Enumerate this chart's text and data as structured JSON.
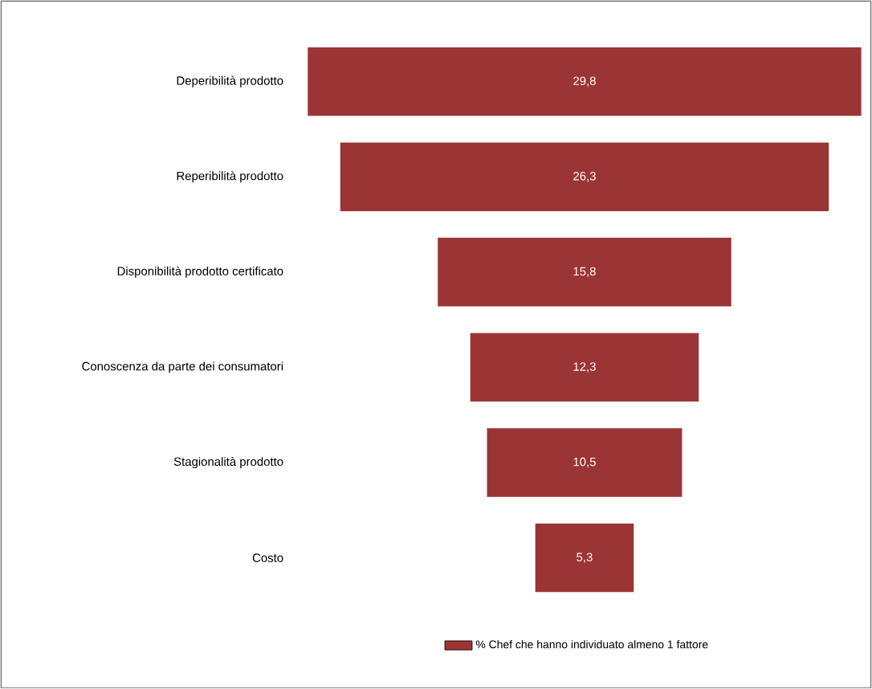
{
  "chart_data": {
    "type": "other",
    "categories": [
      "Deperibilità prodotto",
      "Reperibilità prodotto",
      "Disponibilità prodotto certificato",
      "Conoscenza da parte dei consumatori",
      "Stagionalità prodotto",
      "Costo"
    ],
    "series": [
      {
        "name": "% Chef che hanno individuato almeno 1 fattore",
        "color": "#9b3535",
        "values": [
          29.8,
          26.3,
          15.8,
          12.3,
          10.5,
          5.3
        ],
        "value_labels": [
          "29,8",
          "26,3",
          "15,8",
          "12,3",
          "10,5",
          "5,3"
        ]
      }
    ],
    "legend": "bottom"
  }
}
